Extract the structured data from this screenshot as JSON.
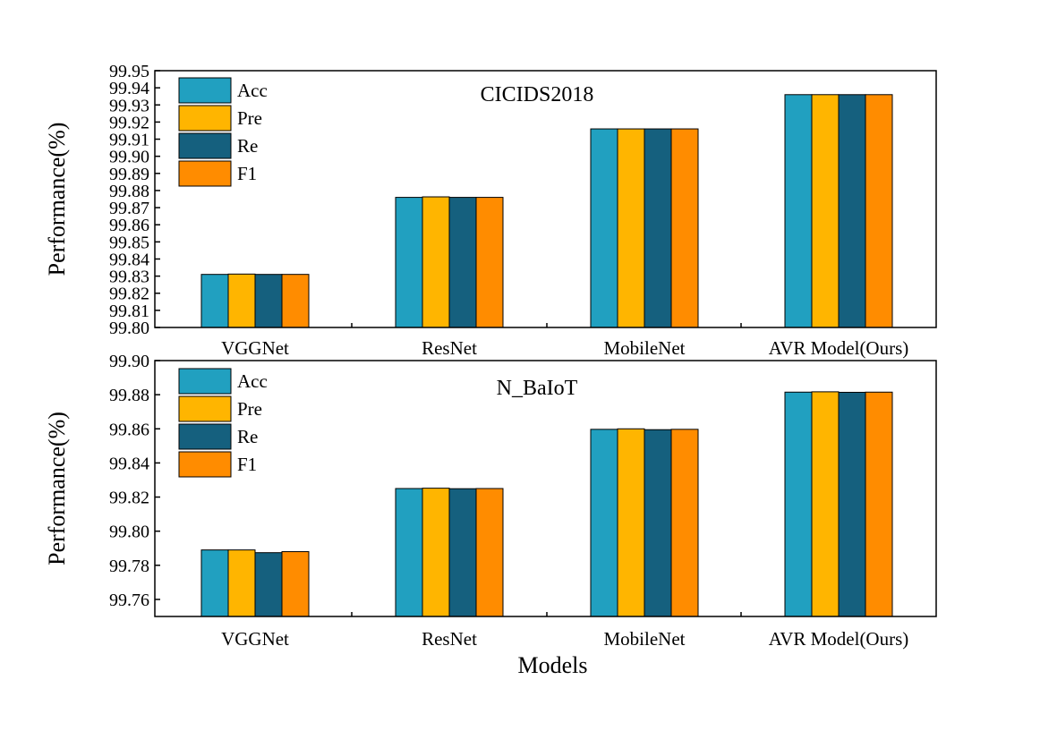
{
  "chart_data": [
    {
      "type": "bar",
      "title": "CICIDS2018",
      "xlabel": "",
      "ylabel": "Performance(%)",
      "ylim": [
        99.8,
        99.95
      ],
      "yticks": [
        "99.80",
        "99.81",
        "99.82",
        "99.83",
        "99.84",
        "99.85",
        "99.86",
        "99.87",
        "99.88",
        "99.89",
        "99.90",
        "99.91",
        "99.92",
        "99.93",
        "99.94",
        "99.95"
      ],
      "categories": [
        "VGGNet",
        "ResNet",
        "MobileNet",
        "AVR Model(Ours)"
      ],
      "legend_position": "top-left",
      "grid": false,
      "series": [
        {
          "name": "Acc",
          "color": "#21a0c0",
          "values": [
            99.831,
            99.876,
            99.916,
            99.936
          ]
        },
        {
          "name": "Pre",
          "color": "#ffb500",
          "values": [
            99.8312,
            99.8763,
            99.916,
            99.936
          ]
        },
        {
          "name": "Re",
          "color": "#15607e",
          "values": [
            99.831,
            99.876,
            99.916,
            99.936
          ]
        },
        {
          "name": "F1",
          "color": "#ff8c00",
          "values": [
            99.831,
            99.876,
            99.916,
            99.936
          ]
        }
      ]
    },
    {
      "type": "bar",
      "title": "N_BaIoT",
      "xlabel": "Models",
      "ylabel": "Performance(%)",
      "ylim": [
        99.75,
        99.9
      ],
      "yticks": [
        "99.76",
        "99.78",
        "99.80",
        "99.82",
        "99.84",
        "99.86",
        "99.88",
        "99.90"
      ],
      "categories": [
        "VGGNet",
        "ResNet",
        "MobileNet",
        "AVR Model(Ours)"
      ],
      "legend_position": "top-left",
      "grid": false,
      "series": [
        {
          "name": "Acc",
          "color": "#21a0c0",
          "values": [
            99.789,
            99.825,
            99.8597,
            99.8815
          ]
        },
        {
          "name": "Pre",
          "color": "#ffb500",
          "values": [
            99.789,
            99.8252,
            99.86,
            99.8817
          ]
        },
        {
          "name": "Re",
          "color": "#15607e",
          "values": [
            99.7874,
            99.8249,
            99.8595,
            99.8814
          ]
        },
        {
          "name": "F1",
          "color": "#ff8c00",
          "values": [
            99.788,
            99.825,
            99.8597,
            99.8815
          ]
        }
      ]
    }
  ]
}
